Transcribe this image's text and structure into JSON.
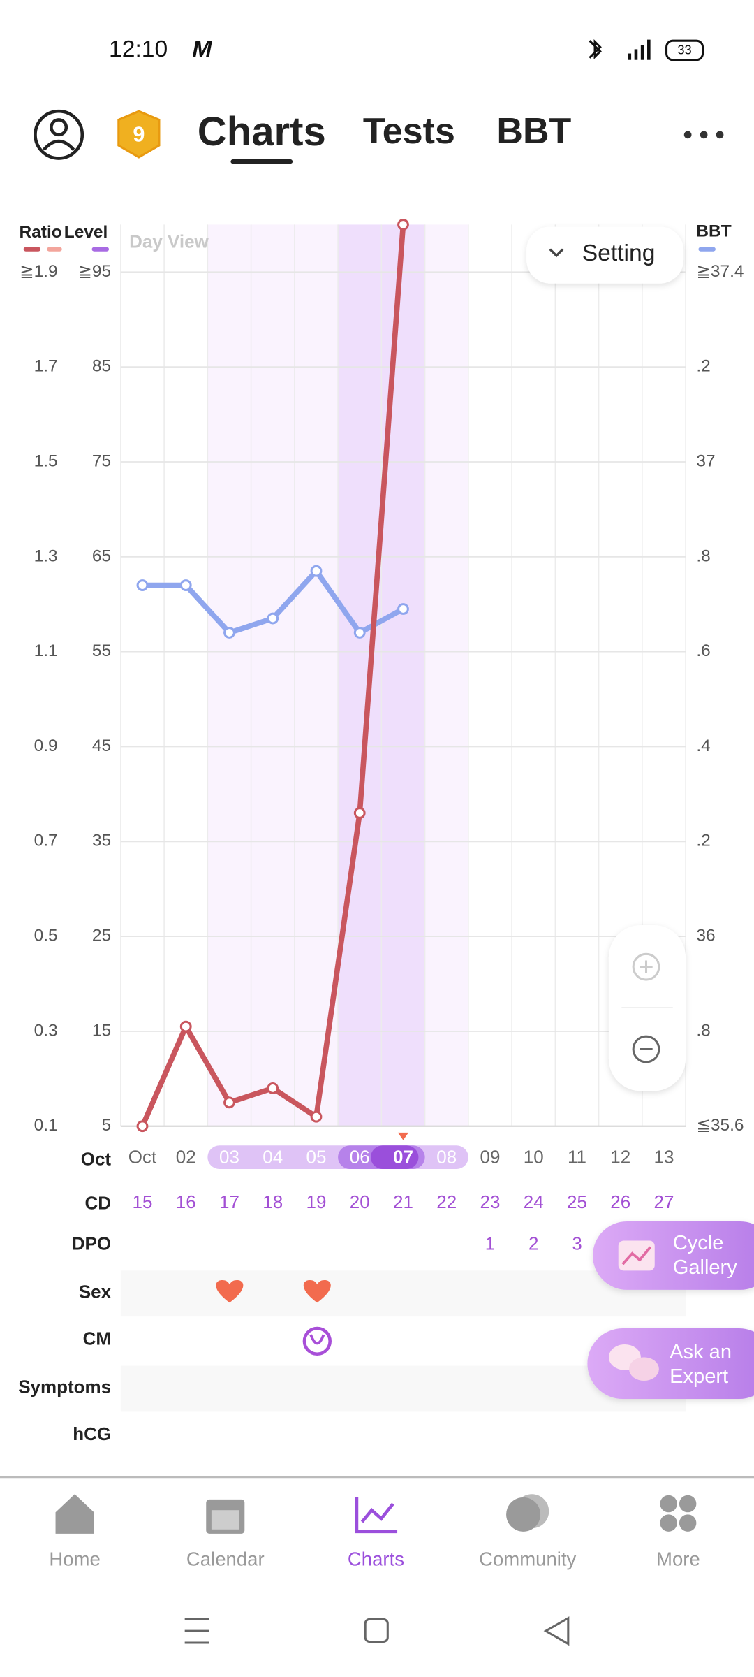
{
  "status_bar": {
    "time": "12:10",
    "battery": "33"
  },
  "badge": "9",
  "tabs": [
    "Charts",
    "Tests",
    "BBT"
  ],
  "chart_data": {
    "type": "line",
    "view_label": "Day View",
    "setting_label": "Setting",
    "categories": [
      "Oct",
      "02",
      "03",
      "04",
      "05",
      "06",
      "07",
      "08",
      "09",
      "10",
      "11",
      "12",
      "13"
    ],
    "series": [
      {
        "name": "Ratio",
        "color": "#c9565e",
        "values": [
          0.1,
          0.31,
          0.15,
          0.18,
          0.12,
          0.76,
          2.0,
          null,
          null,
          null,
          null,
          null,
          null
        ]
      },
      {
        "name": "BBT",
        "color": "#8fa6ee",
        "axis": "y2",
        "values": [
          36.74,
          36.74,
          36.64,
          36.67,
          36.77,
          36.64,
          36.69,
          null,
          null,
          null,
          null,
          null,
          null
        ]
      }
    ],
    "ylim": [
      0.1,
      2.0
    ],
    "yticks": [
      0.1,
      0.3,
      0.5,
      0.7,
      0.9,
      1.1,
      1.3,
      1.5,
      1.7,
      {
        "value": 1.9,
        "label": "≧1.9"
      }
    ],
    "y2lim": [
      35.6,
      37.5
    ],
    "y2ticks": [
      {
        "value": 35.6,
        "label": "≦35.6"
      },
      {
        "value": 35.8,
        "label": ".8"
      },
      36,
      {
        "value": 36.2,
        "label": ".2"
      },
      {
        "value": 36.4,
        "label": ".4"
      },
      {
        "value": 36.6,
        "label": ".6"
      },
      {
        "value": 36.8,
        "label": ".8"
      },
      37,
      {
        "value": 37.2,
        "label": ".2"
      },
      {
        "value": 37.4,
        "label": "≧37.4"
      }
    ],
    "level_axis": {
      "title": "Level",
      "color": "#a86be3",
      "lim": [
        5,
        100
      ],
      "ticks": [
        5,
        15,
        25,
        35,
        45,
        55,
        65,
        75,
        85,
        {
          "value": 95,
          "label": "≧95"
        }
      ]
    },
    "grid": true
  },
  "row_labels": [
    "Oct",
    "CD",
    "DPO",
    "Sex",
    "CM",
    "Symptoms",
    "hCG"
  ],
  "cd": [
    15,
    16,
    17,
    18,
    19,
    20,
    21,
    22,
    23,
    24,
    25,
    26,
    27
  ],
  "dpo": [
    null,
    null,
    null,
    null,
    null,
    null,
    null,
    null,
    1,
    2,
    3,
    null,
    null
  ],
  "buttons": {
    "cycle_gallery": [
      "Cycle",
      "Gallery"
    ],
    "ask_expert": [
      "Ask an",
      "Expert"
    ]
  },
  "nav": [
    "Home",
    "Calendar",
    "Charts",
    "Community",
    "More"
  ]
}
